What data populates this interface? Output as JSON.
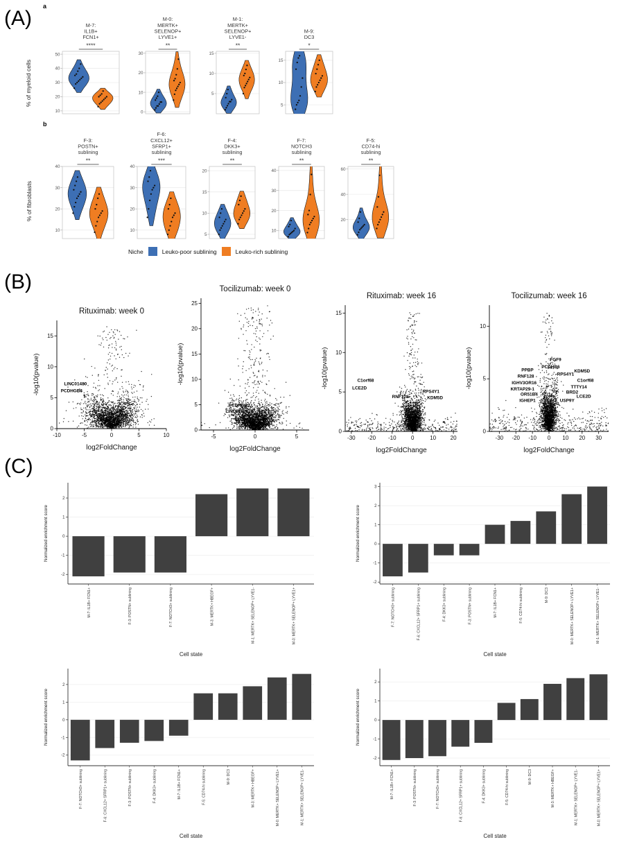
{
  "figure": {
    "panel_labels": [
      "(A)",
      "(B)",
      "(C)"
    ],
    "markers": [
      "a",
      "b"
    ]
  },
  "colors": {
    "blue": "#3D6FB4",
    "orange": "#EF7D22",
    "bar": "#404040",
    "point": "#000000"
  },
  "panelA": {
    "row_a_ylabel": "% of myeloid cells",
    "row_b_ylabel": "% of fibroblasts"
  },
  "legend": {
    "title": "Niche",
    "items": [
      {
        "label": "Leuko-poor sublining",
        "color_key": "blue"
      },
      {
        "label": "Leuko-rich sublining",
        "color_key": "orange"
      }
    ]
  },
  "chart_data": [
    {
      "type": "violin",
      "title_lines": [
        "M-7:",
        "IL1B+",
        "FCN1+"
      ],
      "significance": "****",
      "ylim": [
        8,
        52
      ],
      "yticks": [
        10,
        20,
        30,
        40,
        50
      ],
      "groups": [
        {
          "name": "Leuko-poor sublining",
          "color_key": "blue",
          "points": [
            26,
            29,
            30,
            31,
            32,
            33,
            34,
            35,
            36,
            38,
            40,
            43
          ]
        },
        {
          "name": "Leuko-rich sublining",
          "color_key": "orange",
          "points": [
            13,
            15,
            16,
            17,
            18,
            19,
            20,
            20,
            21,
            22,
            24
          ]
        }
      ]
    },
    {
      "type": "violin",
      "title_lines": [
        "M-0:",
        "MERTK+",
        "SELENOP+",
        "LYVE1+"
      ],
      "significance": "**",
      "ylim": [
        -1,
        31
      ],
      "yticks": [
        0,
        10,
        20,
        30
      ],
      "groups": [
        {
          "name": "Leuko-poor sublining",
          "color_key": "blue",
          "points": [
            1,
            2,
            3,
            3,
            4,
            5,
            5,
            6,
            7,
            8,
            10
          ]
        },
        {
          "name": "Leuko-rich sublining",
          "color_key": "orange",
          "points": [
            6,
            9,
            11,
            12,
            13,
            14,
            15,
            16,
            17,
            19,
            22,
            27
          ]
        }
      ]
    },
    {
      "type": "violin",
      "title_lines": [
        "M-1:",
        "MERTK+",
        "SELENOP+",
        "LYVE1-"
      ],
      "significance": "**",
      "ylim": [
        0,
        15.5
      ],
      "yticks": [
        5,
        10,
        15
      ],
      "groups": [
        {
          "name": "Leuko-poor sublining",
          "color_key": "blue",
          "points": [
            1,
            1.5,
            2,
            2.5,
            3,
            3,
            3.5,
            4,
            5,
            6
          ]
        },
        {
          "name": "Leuko-rich sublining",
          "color_key": "orange",
          "points": [
            5,
            6.5,
            7,
            7.5,
            8,
            8.5,
            9,
            9.5,
            10,
            11,
            12
          ]
        }
      ]
    },
    {
      "type": "violin",
      "title_lines": [
        "M-9:",
        "DC3"
      ],
      "significance": "*",
      "ylim": [
        3,
        17
      ],
      "yticks": [
        5,
        10,
        15
      ],
      "groups": [
        {
          "name": "Leuko-poor sublining",
          "color_key": "blue",
          "points": [
            4,
            5,
            5.5,
            6,
            7,
            9,
            11,
            13,
            14.5,
            15.5,
            16
          ]
        },
        {
          "name": "Leuko-rich sublining",
          "color_key": "orange",
          "points": [
            8,
            9,
            9.5,
            10,
            10.5,
            11,
            11.5,
            12,
            13,
            14,
            15
          ]
        }
      ]
    },
    {
      "type": "violin",
      "title_lines": [
        "F-3:",
        "POSTN+",
        "sublining"
      ],
      "significance": "**",
      "ylim": [
        6,
        40
      ],
      "yticks": [
        10,
        20,
        30,
        40
      ],
      "groups": [
        {
          "name": "Leuko-poor sublining",
          "color_key": "blue",
          "points": [
            18,
            21,
            23,
            25,
            26,
            27,
            28,
            29,
            31,
            33,
            35
          ]
        },
        {
          "name": "Leuko-rich sublining",
          "color_key": "orange",
          "points": [
            9,
            12,
            14,
            16,
            17,
            18,
            19,
            20,
            22,
            25,
            27
          ]
        }
      ]
    },
    {
      "type": "violin",
      "title_lines": [
        "F-6:",
        "CXCL12+",
        "SFRP1+",
        "sublining"
      ],
      "significance": "***",
      "ylim": [
        6,
        40
      ],
      "yticks": [
        10,
        20,
        30,
        40
      ],
      "groups": [
        {
          "name": "Leuko-poor sublining",
          "color_key": "blue",
          "points": [
            16,
            20,
            24,
            27,
            29,
            30,
            31,
            33,
            35,
            38
          ]
        },
        {
          "name": "Leuko-rich sublining",
          "color_key": "orange",
          "points": [
            8,
            10,
            12,
            14,
            16,
            17,
            18,
            20,
            22,
            25
          ]
        }
      ]
    },
    {
      "type": "violin",
      "title_lines": [
        "F-4:",
        "DKK3+",
        "sublining"
      ],
      "significance": "**",
      "ylim": [
        4,
        21
      ],
      "yticks": [
        5,
        10,
        15,
        20
      ],
      "groups": [
        {
          "name": "Leuko-poor sublining",
          "color_key": "blue",
          "points": [
            5,
            6,
            6.5,
            7,
            7.5,
            8,
            8.5,
            9,
            10,
            11
          ]
        },
        {
          "name": "Leuko-rich sublining",
          "color_key": "orange",
          "points": [
            7.5,
            8.5,
            9,
            9.5,
            10,
            10.5,
            11,
            12,
            13,
            14
          ]
        }
      ]
    },
    {
      "type": "violin",
      "title_lines": [
        "F-7:",
        "NOTCH3",
        "sublining"
      ],
      "significance": "**",
      "ylim": [
        6,
        42
      ],
      "yticks": [
        10,
        20,
        30,
        40
      ],
      "groups": [
        {
          "name": "Leuko-poor sublining",
          "color_key": "blue",
          "points": [
            7,
            8,
            8.5,
            9,
            9.5,
            10,
            11,
            12,
            13,
            15
          ]
        },
        {
          "name": "Leuko-rich sublining",
          "color_key": "orange",
          "points": [
            9,
            11,
            13,
            14,
            15,
            16,
            17,
            18,
            20,
            28,
            38
          ]
        }
      ]
    },
    {
      "type": "violin",
      "title_lines": [
        "F-5:",
        "CD74-hi",
        "sublining"
      ],
      "significance": "**",
      "ylim": [
        5,
        62
      ],
      "yticks": [
        20,
        40,
        60
      ],
      "groups": [
        {
          "name": "Leuko-poor sublining",
          "color_key": "blue",
          "points": [
            8,
            10,
            12,
            13,
            14,
            15,
            16,
            18,
            21,
            26
          ]
        },
        {
          "name": "Leuko-rich sublining",
          "color_key": "orange",
          "points": [
            13,
            16,
            18,
            20,
            22,
            24,
            26,
            30,
            38,
            55
          ]
        }
      ]
    },
    {
      "type": "volcano",
      "title": "Rituximab: week 0",
      "xlabel": "log2FoldChange",
      "ylabel": "-log10(pvalue)",
      "xlim": [
        -10,
        10
      ],
      "xticks": [
        -10,
        -5,
        0,
        5,
        10
      ],
      "ylim": [
        0,
        17.5
      ],
      "yticks": [
        0,
        5,
        10,
        15
      ],
      "cloud": {
        "seed": 11,
        "n": 2200,
        "x_sd": 2.3,
        "noise": 1.7,
        "slope": 1.2,
        "spike_n": 150,
        "spike_sd": 1.6,
        "tail_n": 40,
        "tail_noise": 1.2
      },
      "labels": [
        {
          "gene": "LINC01480",
          "x": -6.6,
          "y": 7.0
        },
        {
          "gene": "PCDHGB6",
          "x": -7.3,
          "y": 5.9
        }
      ]
    },
    {
      "type": "volcano",
      "title": "Tocilizumab: week 0",
      "xlabel": "log2FoldChange",
      "ylabel": "-log10(pvalue)",
      "xlim": [
        -6.5,
        6.5
      ],
      "xticks": [
        -5,
        0,
        5
      ],
      "ylim": [
        0,
        26
      ],
      "yticks": [
        0,
        5,
        10,
        15,
        20,
        25
      ],
      "cloud": {
        "seed": 22,
        "n": 2400,
        "x_sd": 1.3,
        "noise": 1.9,
        "slope": 1.6,
        "spike_n": 220,
        "spike_sd": 0.9,
        "tail_n": 30,
        "tail_noise": 1.2
      },
      "labels": [
        {
          "gene": "PCDHGB2",
          "x": -1.9,
          "y": 4.6
        },
        {
          "gene": "LINC01106",
          "x": -2.2,
          "y": 3.4
        },
        {
          "gene": "SPRR2D",
          "x": -1.3,
          "y": 1.7
        }
      ]
    },
    {
      "type": "volcano",
      "title": "Rituximab: week 16",
      "xlabel": "log2FoldChange",
      "ylabel": "-log10(pvalue)",
      "xlim": [
        -33,
        22
      ],
      "xticks": [
        -30,
        -20,
        -10,
        0,
        10,
        20
      ],
      "ylim": [
        0,
        16
      ],
      "yticks": [
        0,
        5,
        10,
        15
      ],
      "cloud": {
        "seed": 33,
        "n": 2000,
        "x_sd": 2.4,
        "noise": 1.5,
        "slope": 0.9,
        "spike_n": 130,
        "spike_sd": 1.6,
        "tail_n": 320,
        "tail_noise": 0.9
      },
      "labels": [
        {
          "gene": "C1orf68",
          "x": -23,
          "y": 6.3
        },
        {
          "gene": "LCE2D",
          "x": -26,
          "y": 5.3
        },
        {
          "gene": "RNF128",
          "x": -6,
          "y": 4.2
        },
        {
          "gene": "RPS4Y1",
          "x": 9,
          "y": 4.9
        },
        {
          "gene": "KDM5D",
          "x": 11,
          "y": 4.1
        }
      ]
    },
    {
      "type": "volcano",
      "title": "Tocilizumab: week 16",
      "xlabel": "log2FoldChange",
      "ylabel": "-log10(pvalue)",
      "xlim": [
        -36,
        36
      ],
      "xticks": [
        -30,
        -20,
        -10,
        0,
        10,
        20,
        30
      ],
      "ylim": [
        0,
        12
      ],
      "yticks": [
        0,
        5,
        10
      ],
      "cloud": {
        "seed": 44,
        "n": 1900,
        "x_sd": 2.4,
        "noise": 1.5,
        "slope": 0.8,
        "spike_n": 110,
        "spike_sd": 1.6,
        "tail_n": 380,
        "tail_noise": 0.9
      },
      "labels": [
        {
          "gene": "FGF9",
          "x": 4,
          "y": 6.7
        },
        {
          "gene": "PCDHB6",
          "x": 1,
          "y": 6.0
        },
        {
          "gene": "PPBP",
          "x": -13,
          "y": 5.7
        },
        {
          "gene": "RNF128",
          "x": -14,
          "y": 5.1
        },
        {
          "gene": "IGHV3OR16",
          "x": -15,
          "y": 4.5
        },
        {
          "gene": "KRTAP29-1",
          "x": -16,
          "y": 3.9
        },
        {
          "gene": "OR51B4",
          "x": -12,
          "y": 3.4
        },
        {
          "gene": "IGHEP1",
          "x": -13,
          "y": 2.8
        },
        {
          "gene": "KDM5D",
          "x": 20,
          "y": 5.6
        },
        {
          "gene": "RPS4Y1",
          "x": 10,
          "y": 5.3
        },
        {
          "gene": "C1orf68",
          "x": 22,
          "y": 4.7
        },
        {
          "gene": "TTTY14",
          "x": 18,
          "y": 4.1
        },
        {
          "gene": "BRD2",
          "x": 14,
          "y": 3.6
        },
        {
          "gene": "LCE2D",
          "x": 21,
          "y": 3.2
        },
        {
          "gene": "USP9Y",
          "x": 11,
          "y": 2.8
        }
      ]
    },
    {
      "type": "bar",
      "ylabel": "Normalized enrichment score",
      "xlabel": "Cell state",
      "ylim": [
        -2.5,
        2.8
      ],
      "yticks": [
        -2,
        -1,
        0,
        1,
        2
      ],
      "categories": [
        "M-7: IL1B+ FCN1+",
        "F-3: POSTN+ sublining",
        "F-7: NOTCH3+ sublining",
        "M-3: MERTK+ HBEGF+",
        "M-1: MERTK+ SELENOP+ LYVE1-",
        "M-0: MERTK+ SELENOP+ LYVE1+"
      ],
      "values": [
        -2.1,
        -1.9,
        -1.9,
        2.2,
        2.5,
        2.5
      ]
    },
    {
      "type": "bar",
      "ylabel": "Normalized enrichment score",
      "xlabel": "Cell state",
      "ylim": [
        -2.1,
        3.2
      ],
      "yticks": [
        -2,
        -1,
        0,
        1,
        2,
        3
      ],
      "categories": [
        "F-7: NOTCH3+ sublining",
        "F-6: CXCL12+ SFRP1+ sublining",
        "F-4: DKK3+ sublining",
        "F-3: POSTN+ sublining",
        "M-7: IL1B+ FCN1+",
        "F-5: CD74-hi sublining",
        "M-9: DC3",
        "M-0: MERTK+ SELENOP+ LYVE1+",
        "M-1: MERTK+ SELENOP+ LYVE1-"
      ],
      "values": [
        -1.7,
        -1.5,
        -0.6,
        -0.6,
        1.0,
        1.2,
        1.7,
        2.6,
        3.0
      ]
    },
    {
      "type": "bar",
      "ylabel": "Normalized enrichment score",
      "xlabel": "Cell state",
      "ylim": [
        -2.6,
        2.9
      ],
      "yticks": [
        -2,
        -1,
        0,
        1,
        2
      ],
      "categories": [
        "F-7: NOTCH3+ sublining",
        "F-6: CXCL12+ SFRP1+ sublining",
        "F-3: POSTN+ sublining",
        "F-4: DKK3+ sublining",
        "M-7: IL1B+ FCN1+",
        "F-5: CD74-hi sublining",
        "M-9: DC3",
        "M-3: MERTK+ HBEGF+",
        "M-0: MERTK+ SELENOP+ LYVE1+",
        "M-1: MERTK+ SELENOP+ LYVE1-"
      ],
      "values": [
        -2.3,
        -1.6,
        -1.3,
        -1.2,
        -0.9,
        1.5,
        1.5,
        1.9,
        2.4,
        2.6
      ]
    },
    {
      "type": "bar",
      "ylabel": "Normalized enrichment score",
      "xlabel": "Cell state",
      "ylim": [
        -2.4,
        2.7
      ],
      "yticks": [
        -2,
        -1,
        0,
        1,
        2
      ],
      "categories": [
        "M-7: IL1B+ FCN1+",
        "F-3: POSTN+ sublining",
        "F-7: NOTCH3+ sublining",
        "F-6: CXCL12+ SFRP1+ sublining",
        "F-4: DKK3+ sublining",
        "F-5: CD74-hi sublining",
        "M-9: DC3",
        "M-3: MERTK+ HBEGF+",
        "M-1: MERTK+ SELENOP+ LYVE1-",
        "M-0: MERTK+ SELENOP+ LYVE1+"
      ],
      "values": [
        -2.1,
        -2.0,
        -1.9,
        -1.4,
        -1.2,
        0.9,
        1.1,
        1.9,
        2.2,
        2.4
      ]
    }
  ]
}
